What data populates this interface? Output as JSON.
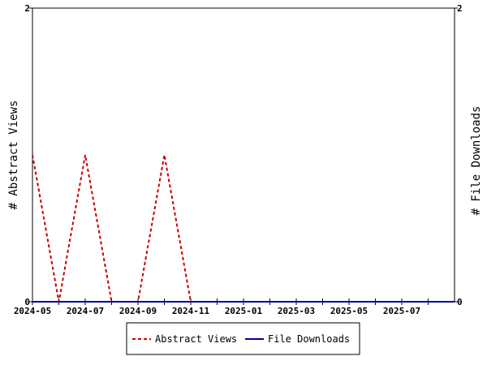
{
  "chart_data": {
    "type": "line",
    "x": [
      "2024-05",
      "2024-06",
      "2024-07",
      "2024-08",
      "2024-09",
      "2024-10",
      "2024-11",
      "2024-12",
      "2025-01",
      "2025-02",
      "2025-03",
      "2025-04",
      "2025-05",
      "2025-06",
      "2025-07",
      "2025-08"
    ],
    "series": [
      {
        "name": "Abstract Views",
        "values": [
          1,
          0,
          1,
          0,
          0,
          1,
          0,
          0,
          0,
          0,
          0,
          0,
          0,
          0,
          0,
          0
        ],
        "color": "#cc0000",
        "style": "dashed",
        "axis": "left"
      },
      {
        "name": "File Downloads",
        "values": [
          0,
          0,
          0,
          0,
          0,
          0,
          0,
          0,
          0,
          0,
          0,
          0,
          0,
          0,
          0,
          0
        ],
        "color": "#000099",
        "style": "solid",
        "axis": "right"
      }
    ],
    "x_tick_labels": [
      "2024-05",
      "2024-07",
      "2024-09",
      "2024-11",
      "2025-01",
      "2025-03",
      "2025-05",
      "2025-07"
    ],
    "ylabel_left": "# Abstract Views",
    "ylabel_right": "# File Downloads",
    "ylim_left": [
      0,
      2
    ],
    "ylim_right": [
      0,
      2
    ],
    "y_tick_labels_left": [
      "0",
      "2"
    ],
    "y_tick_labels_right": [
      "0",
      "2"
    ],
    "grid": false,
    "legend_placement": "bottom"
  }
}
